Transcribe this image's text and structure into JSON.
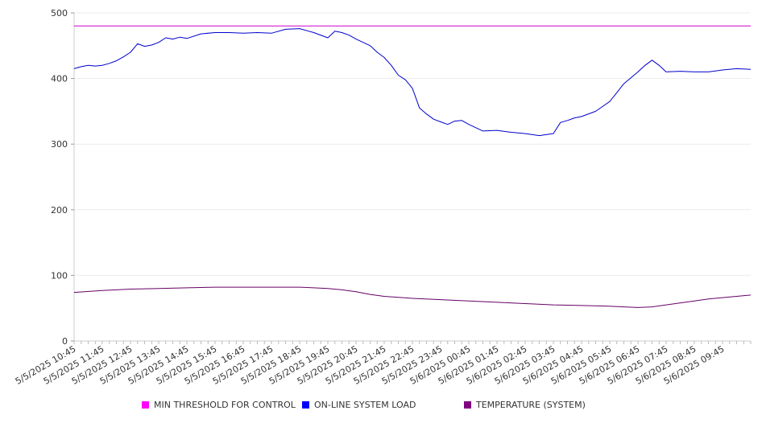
{
  "chart_data": {
    "type": "line",
    "x_tick_labels": [
      "5/5/2025 10:45",
      "5/5/2025 11:45",
      "5/5/2025 12:45",
      "5/5/2025 13:45",
      "5/5/2025 14:45",
      "5/5/2025 15:45",
      "5/5/2025 16:45",
      "5/5/2025 17:45",
      "5/5/2025 18:45",
      "5/5/2025 19:45",
      "5/5/2025 20:45",
      "5/5/2025 21:45",
      "5/5/2025 22:45",
      "5/5/2025 23:45",
      "5/6/2025 00:45",
      "5/6/2025 01:45",
      "5/6/2025 02:45",
      "5/6/2025 03:45",
      "5/6/2025 04:45",
      "5/6/2025 05:45",
      "5/6/2025 06:45",
      "5/6/2025 07:45",
      "5/6/2025 08:45",
      "5/6/2025 09:45"
    ],
    "x_range_hours": [
      0,
      24
    ],
    "ylim": [
      0,
      500
    ],
    "y_ticks": [
      0,
      100,
      200,
      300,
      400,
      500
    ],
    "grid": true,
    "legend_position": "bottom",
    "series": [
      {
        "name": "MIN THRESHOLD FOR CONTROL",
        "color": "#cc00cc",
        "swatch": "#ff00ff",
        "x": [
          0,
          24
        ],
        "y": [
          480,
          480
        ]
      },
      {
        "name": "ON-LINE SYSTEM LOAD",
        "color": "#0000cc",
        "swatch": "#0000ff",
        "x": [
          0,
          0.25,
          0.5,
          0.75,
          1,
          1.25,
          1.5,
          1.75,
          2,
          2.25,
          2.5,
          2.75,
          3,
          3.25,
          3.5,
          3.75,
          4,
          4.5,
          5,
          5.5,
          6,
          6.5,
          7,
          7.5,
          8,
          8.5,
          9,
          9.25,
          9.5,
          9.75,
          10,
          10.5,
          10.75,
          11,
          11.25,
          11.5,
          11.75,
          12,
          12.25,
          12.5,
          12.75,
          13,
          13.25,
          13.5,
          13.75,
          14,
          14.5,
          15,
          15.5,
          16,
          16.5,
          17,
          17.25,
          17.5,
          17.75,
          18,
          18.5,
          19,
          19.5,
          20,
          20.25,
          20.5,
          20.75,
          21,
          21.5,
          22,
          22.5,
          23,
          23.5,
          24
        ],
        "y": [
          415,
          418,
          420,
          419,
          420,
          423,
          427,
          433,
          440,
          453,
          449,
          451,
          455,
          462,
          460,
          463,
          461,
          468,
          470,
          470,
          469,
          470,
          469,
          475,
          476,
          470,
          462,
          472,
          470,
          466,
          460,
          450,
          440,
          432,
          420,
          405,
          398,
          385,
          355,
          346,
          338,
          334,
          330,
          335,
          336,
          330,
          320,
          321,
          318,
          316,
          313,
          316,
          333,
          336,
          340,
          342,
          350,
          365,
          392,
          410,
          420,
          428,
          420,
          410,
          411,
          410,
          410,
          413,
          415,
          414
        ]
      },
      {
        "name": "TEMPERATURE (SYSTEM)",
        "color": "#660066",
        "swatch": "#800080",
        "x": [
          0,
          1,
          2,
          3,
          4,
          5,
          6,
          7,
          8,
          8.5,
          9,
          9.5,
          10,
          10.5,
          11,
          12,
          13,
          14,
          15,
          16,
          17,
          18,
          19,
          19.5,
          20,
          20.5,
          21,
          22,
          22.5,
          23,
          24
        ],
        "y": [
          74,
          77,
          79,
          80,
          81,
          82,
          82,
          82,
          82,
          81,
          80,
          78,
          75,
          71,
          68,
          65,
          63,
          61,
          59,
          57,
          55,
          54,
          53,
          52,
          51,
          52,
          55,
          61,
          64,
          66,
          70
        ]
      }
    ]
  }
}
